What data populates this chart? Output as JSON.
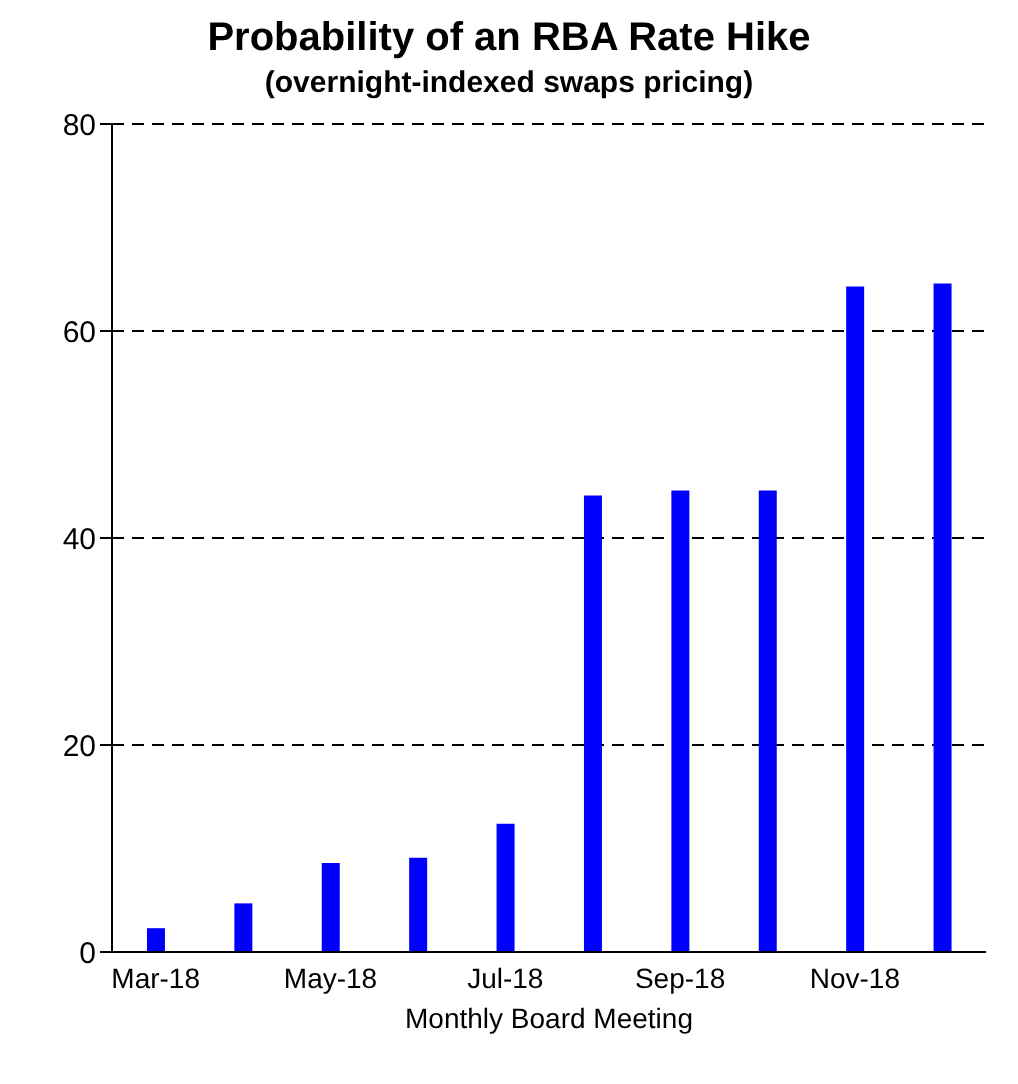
{
  "chart_data": {
    "type": "bar",
    "title": "Probability of an RBA Rate Hike",
    "subtitle": "(overnight-indexed swaps pricing)",
    "xlabel": "Monthly Board Meeting",
    "categories": [
      "Mar-18",
      null,
      "May-18",
      null,
      "Jul-18",
      null,
      "Sep-18",
      null,
      "Nov-18",
      null
    ],
    "values": [
      2.3,
      4.7,
      8.6,
      9.1,
      12.4,
      44.1,
      44.6,
      44.6,
      64.3,
      64.6
    ],
    "color": "#0000ff",
    "ylim": [
      0,
      80
    ],
    "yticks": [
      0,
      20,
      40,
      60,
      80
    ],
    "grid": "y"
  }
}
